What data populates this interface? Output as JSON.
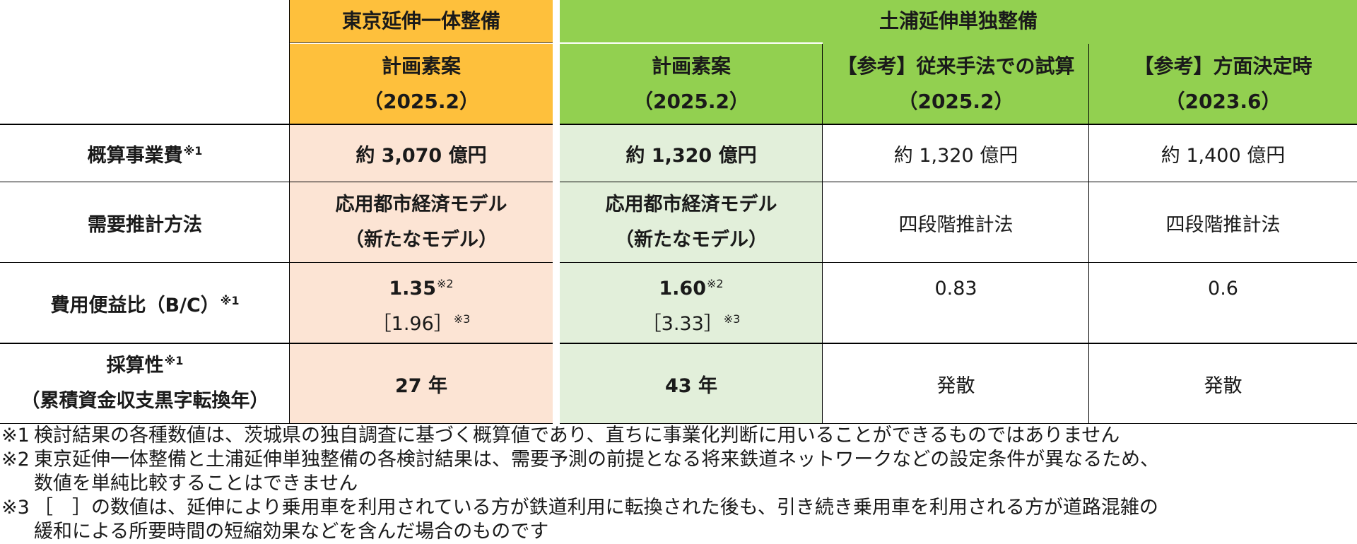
{
  "header": {
    "group_tokyo": "東京延伸一体整備",
    "group_tsuchiura": "土浦延伸単独整備",
    "col1_line1": "計画素案",
    "col1_line2": "（2025.2）",
    "col2_line1": "計画素案",
    "col2_line2": "（2025.2）",
    "col3_line1": "【参考】従来手法での試算",
    "col3_line2": "（2025.2）",
    "col4_line1": "【参考】方面決定時",
    "col4_line2": "（2023.6）"
  },
  "rows": {
    "cost": {
      "label": "概算事業費",
      "label_note": "※1",
      "c1": "約 3,070 億円",
      "c2": "約 1,320 億円",
      "c3": "約 1,320 億円",
      "c4": "約 1,400 億円"
    },
    "method": {
      "label": "需要推計方法",
      "c1_line1": "応用都市経済モデル",
      "c1_line2": "（新たなモデル）",
      "c2_line1": "応用都市経済モデル",
      "c2_line2": "（新たなモデル）",
      "c3": "四段階推計法",
      "c4": "四段階推計法"
    },
    "bc": {
      "label": "費用便益比（B/C）",
      "label_note": "※1",
      "c1_value": "1.35",
      "c1_note": "※2",
      "c1_bracket": "［1.96］",
      "c1_bracket_note": "※3",
      "c2_value": "1.60",
      "c2_note": "※2",
      "c2_bracket": "［3.33］",
      "c2_bracket_note": "※3",
      "c3": "0.83",
      "c4": "0.6"
    },
    "profit": {
      "label_line1": "採算性",
      "label_note": "※1",
      "label_line2": "（累積資金収支黒字転換年）",
      "c1": "27 年",
      "c2": "43 年",
      "c3": "発散",
      "c4": "発散"
    }
  },
  "notes": [
    {
      "mark": "※1",
      "lines": [
        "検討結果の各種数値は、茨城県の独自調査に基づく概算値であり、直ちに事業化判断に用いることができるものではありません"
      ]
    },
    {
      "mark": "※2",
      "lines": [
        "東京延伸一体整備と土浦延伸単独整備の各検討結果は、需要予測の前提となる将来鉄道ネットワークなどの設定条件が異なるため、",
        "数値を単純比較することはできません"
      ]
    },
    {
      "mark": "※3",
      "lines": [
        "［　］の数値は、延伸により乗用車を利用されている方が鉄道利用に転換された後も、引き続き乗用車を利用される方が道路混雑の",
        "緩和による所要時間の短縮効果などを含んだ場合のものです"
      ]
    }
  ],
  "colors": {
    "orange_header": "#FEC03C",
    "green_header": "#92D050",
    "orange_body": "#FCE4D4",
    "green_body": "#E2EFDA"
  }
}
